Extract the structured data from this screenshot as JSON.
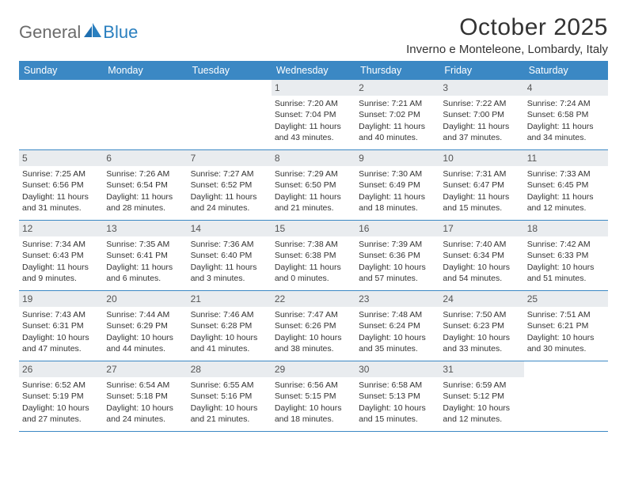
{
  "logo": {
    "part1": "General",
    "part2": "Blue"
  },
  "title": "October 2025",
  "location": "Inverno e Monteleone, Lombardy, Italy",
  "weekdays": [
    "Sunday",
    "Monday",
    "Tuesday",
    "Wednesday",
    "Thursday",
    "Friday",
    "Saturday"
  ],
  "colors": {
    "header_bg": "#3b88c4",
    "header_text": "#ffffff",
    "daynum_bg": "#e9ecef",
    "row_border": "#3b88c4",
    "text": "#333333",
    "logo_gray": "#6b6b6b",
    "logo_blue": "#2a7fbf"
  },
  "typography": {
    "title_fontsize": 30,
    "location_fontsize": 15,
    "weekday_fontsize": 12.5,
    "daynum_fontsize": 12,
    "body_fontsize": 10.5
  },
  "layout": {
    "columns": 7,
    "rows": 5,
    "cell_min_height": 88
  },
  "weeks": [
    [
      {
        "num": "",
        "sunrise": "",
        "sunset": "",
        "daylight": ""
      },
      {
        "num": "",
        "sunrise": "",
        "sunset": "",
        "daylight": ""
      },
      {
        "num": "",
        "sunrise": "",
        "sunset": "",
        "daylight": ""
      },
      {
        "num": "1",
        "sunrise": "Sunrise: 7:20 AM",
        "sunset": "Sunset: 7:04 PM",
        "daylight": "Daylight: 11 hours and 43 minutes."
      },
      {
        "num": "2",
        "sunrise": "Sunrise: 7:21 AM",
        "sunset": "Sunset: 7:02 PM",
        "daylight": "Daylight: 11 hours and 40 minutes."
      },
      {
        "num": "3",
        "sunrise": "Sunrise: 7:22 AM",
        "sunset": "Sunset: 7:00 PM",
        "daylight": "Daylight: 11 hours and 37 minutes."
      },
      {
        "num": "4",
        "sunrise": "Sunrise: 7:24 AM",
        "sunset": "Sunset: 6:58 PM",
        "daylight": "Daylight: 11 hours and 34 minutes."
      }
    ],
    [
      {
        "num": "5",
        "sunrise": "Sunrise: 7:25 AM",
        "sunset": "Sunset: 6:56 PM",
        "daylight": "Daylight: 11 hours and 31 minutes."
      },
      {
        "num": "6",
        "sunrise": "Sunrise: 7:26 AM",
        "sunset": "Sunset: 6:54 PM",
        "daylight": "Daylight: 11 hours and 28 minutes."
      },
      {
        "num": "7",
        "sunrise": "Sunrise: 7:27 AM",
        "sunset": "Sunset: 6:52 PM",
        "daylight": "Daylight: 11 hours and 24 minutes."
      },
      {
        "num": "8",
        "sunrise": "Sunrise: 7:29 AM",
        "sunset": "Sunset: 6:50 PM",
        "daylight": "Daylight: 11 hours and 21 minutes."
      },
      {
        "num": "9",
        "sunrise": "Sunrise: 7:30 AM",
        "sunset": "Sunset: 6:49 PM",
        "daylight": "Daylight: 11 hours and 18 minutes."
      },
      {
        "num": "10",
        "sunrise": "Sunrise: 7:31 AM",
        "sunset": "Sunset: 6:47 PM",
        "daylight": "Daylight: 11 hours and 15 minutes."
      },
      {
        "num": "11",
        "sunrise": "Sunrise: 7:33 AM",
        "sunset": "Sunset: 6:45 PM",
        "daylight": "Daylight: 11 hours and 12 minutes."
      }
    ],
    [
      {
        "num": "12",
        "sunrise": "Sunrise: 7:34 AM",
        "sunset": "Sunset: 6:43 PM",
        "daylight": "Daylight: 11 hours and 9 minutes."
      },
      {
        "num": "13",
        "sunrise": "Sunrise: 7:35 AM",
        "sunset": "Sunset: 6:41 PM",
        "daylight": "Daylight: 11 hours and 6 minutes."
      },
      {
        "num": "14",
        "sunrise": "Sunrise: 7:36 AM",
        "sunset": "Sunset: 6:40 PM",
        "daylight": "Daylight: 11 hours and 3 minutes."
      },
      {
        "num": "15",
        "sunrise": "Sunrise: 7:38 AM",
        "sunset": "Sunset: 6:38 PM",
        "daylight": "Daylight: 11 hours and 0 minutes."
      },
      {
        "num": "16",
        "sunrise": "Sunrise: 7:39 AM",
        "sunset": "Sunset: 6:36 PM",
        "daylight": "Daylight: 10 hours and 57 minutes."
      },
      {
        "num": "17",
        "sunrise": "Sunrise: 7:40 AM",
        "sunset": "Sunset: 6:34 PM",
        "daylight": "Daylight: 10 hours and 54 minutes."
      },
      {
        "num": "18",
        "sunrise": "Sunrise: 7:42 AM",
        "sunset": "Sunset: 6:33 PM",
        "daylight": "Daylight: 10 hours and 51 minutes."
      }
    ],
    [
      {
        "num": "19",
        "sunrise": "Sunrise: 7:43 AM",
        "sunset": "Sunset: 6:31 PM",
        "daylight": "Daylight: 10 hours and 47 minutes."
      },
      {
        "num": "20",
        "sunrise": "Sunrise: 7:44 AM",
        "sunset": "Sunset: 6:29 PM",
        "daylight": "Daylight: 10 hours and 44 minutes."
      },
      {
        "num": "21",
        "sunrise": "Sunrise: 7:46 AM",
        "sunset": "Sunset: 6:28 PM",
        "daylight": "Daylight: 10 hours and 41 minutes."
      },
      {
        "num": "22",
        "sunrise": "Sunrise: 7:47 AM",
        "sunset": "Sunset: 6:26 PM",
        "daylight": "Daylight: 10 hours and 38 minutes."
      },
      {
        "num": "23",
        "sunrise": "Sunrise: 7:48 AM",
        "sunset": "Sunset: 6:24 PM",
        "daylight": "Daylight: 10 hours and 35 minutes."
      },
      {
        "num": "24",
        "sunrise": "Sunrise: 7:50 AM",
        "sunset": "Sunset: 6:23 PM",
        "daylight": "Daylight: 10 hours and 33 minutes."
      },
      {
        "num": "25",
        "sunrise": "Sunrise: 7:51 AM",
        "sunset": "Sunset: 6:21 PM",
        "daylight": "Daylight: 10 hours and 30 minutes."
      }
    ],
    [
      {
        "num": "26",
        "sunrise": "Sunrise: 6:52 AM",
        "sunset": "Sunset: 5:19 PM",
        "daylight": "Daylight: 10 hours and 27 minutes."
      },
      {
        "num": "27",
        "sunrise": "Sunrise: 6:54 AM",
        "sunset": "Sunset: 5:18 PM",
        "daylight": "Daylight: 10 hours and 24 minutes."
      },
      {
        "num": "28",
        "sunrise": "Sunrise: 6:55 AM",
        "sunset": "Sunset: 5:16 PM",
        "daylight": "Daylight: 10 hours and 21 minutes."
      },
      {
        "num": "29",
        "sunrise": "Sunrise: 6:56 AM",
        "sunset": "Sunset: 5:15 PM",
        "daylight": "Daylight: 10 hours and 18 minutes."
      },
      {
        "num": "30",
        "sunrise": "Sunrise: 6:58 AM",
        "sunset": "Sunset: 5:13 PM",
        "daylight": "Daylight: 10 hours and 15 minutes."
      },
      {
        "num": "31",
        "sunrise": "Sunrise: 6:59 AM",
        "sunset": "Sunset: 5:12 PM",
        "daylight": "Daylight: 10 hours and 12 minutes."
      },
      {
        "num": "",
        "sunrise": "",
        "sunset": "",
        "daylight": ""
      }
    ]
  ]
}
